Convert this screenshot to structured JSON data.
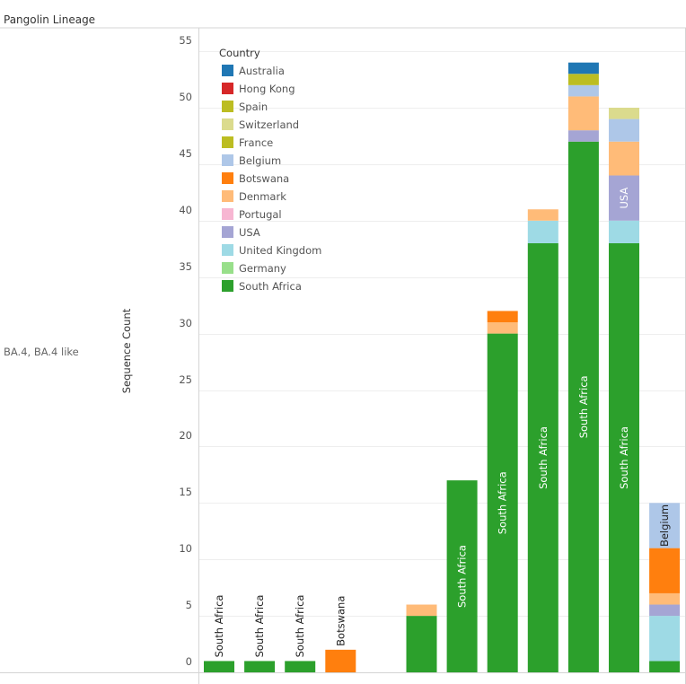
{
  "page": {
    "title": "Pangolin Lineage"
  },
  "chart_data": {
    "type": "bar",
    "stacked": true,
    "row_label": "BA.4, BA.4 like",
    "ylabel": "Sequence Count",
    "xlabel": "",
    "ylim": [
      0,
      56
    ],
    "yticks": [
      0,
      5,
      10,
      15,
      20,
      25,
      30,
      35,
      40,
      45,
      50,
      55
    ],
    "grid": true,
    "legend": {
      "title": "Country",
      "placement": "top-left",
      "items": [
        {
          "name": "Australia",
          "color": "#1f77b4"
        },
        {
          "name": "Hong Kong",
          "color": "#d62728"
        },
        {
          "name": "Spain",
          "color": "#bcbd22"
        },
        {
          "name": "Switzerland",
          "color": "#dbdb8d"
        },
        {
          "name": "France",
          "color": "#bcbd22"
        },
        {
          "name": "Belgium",
          "color": "#aec7e8"
        },
        {
          "name": "Botswana",
          "color": "#ff7f0e"
        },
        {
          "name": "Denmark",
          "color": "#ffbb78"
        },
        {
          "name": "Portugal",
          "color": "#f7b6d2"
        },
        {
          "name": "USA",
          "color": "#a5a5d4"
        },
        {
          "name": "United Kingdom",
          "color": "#9edae5"
        },
        {
          "name": "Germany",
          "color": "#98df8a"
        },
        {
          "name": "South Africa",
          "color": "#2ca02c"
        }
      ]
    },
    "bars": [
      {
        "segments": [
          {
            "country": "South Africa",
            "value": 1
          }
        ],
        "label": "South Africa",
        "label_color": "#222222"
      },
      {
        "segments": [
          {
            "country": "South Africa",
            "value": 1
          }
        ],
        "label": "South Africa",
        "label_color": "#222222"
      },
      {
        "segments": [
          {
            "country": "South Africa",
            "value": 1
          }
        ],
        "label": "South Africa",
        "label_color": "#222222"
      },
      {
        "segments": [
          {
            "country": "Botswana",
            "value": 2
          }
        ],
        "label": "Botswana",
        "label_color": "#222222"
      },
      {
        "segments": []
      },
      {
        "segments": [
          {
            "country": "South Africa",
            "value": 5
          },
          {
            "country": "Denmark",
            "value": 1
          }
        ]
      },
      {
        "segments": [
          {
            "country": "South Africa",
            "value": 17
          }
        ],
        "label": "South Africa",
        "label_color": "#ffffff"
      },
      {
        "segments": [
          {
            "country": "South Africa",
            "value": 30
          },
          {
            "country": "Denmark",
            "value": 1
          },
          {
            "country": "Botswana",
            "value": 1
          }
        ],
        "label": "South Africa",
        "label_color": "#ffffff"
      },
      {
        "segments": [
          {
            "country": "South Africa",
            "value": 38
          },
          {
            "country": "United Kingdom",
            "value": 2
          },
          {
            "country": "Denmark",
            "value": 1
          }
        ],
        "label": "South Africa",
        "label_color": "#ffffff"
      },
      {
        "segments": [
          {
            "country": "South Africa",
            "value": 47
          },
          {
            "country": "USA",
            "value": 1
          },
          {
            "country": "Denmark",
            "value": 3
          },
          {
            "country": "Belgium",
            "value": 1
          },
          {
            "country": "Spain",
            "value": 1
          },
          {
            "country": "Australia",
            "value": 1
          }
        ],
        "label": "South Africa",
        "label_color": "#ffffff"
      },
      {
        "segments": [
          {
            "country": "South Africa",
            "value": 38
          },
          {
            "country": "United Kingdom",
            "value": 2
          },
          {
            "country": "USA",
            "value": 4
          },
          {
            "country": "Denmark",
            "value": 3
          },
          {
            "country": "Belgium",
            "value": 2
          },
          {
            "country": "Switzerland",
            "value": 1
          }
        ],
        "label": "South Africa",
        "label_color": "#ffffff",
        "extra_label": "USA",
        "extra_label_color": "#ffffff"
      },
      {
        "segments": [
          {
            "country": "South Africa",
            "value": 1
          },
          {
            "country": "United Kingdom",
            "value": 4
          },
          {
            "country": "USA",
            "value": 1
          },
          {
            "country": "Denmark",
            "value": 1
          },
          {
            "country": "Botswana",
            "value": 4
          },
          {
            "country": "Belgium",
            "value": 4
          }
        ],
        "label": "Belgium",
        "label_color": "#222222"
      }
    ]
  }
}
